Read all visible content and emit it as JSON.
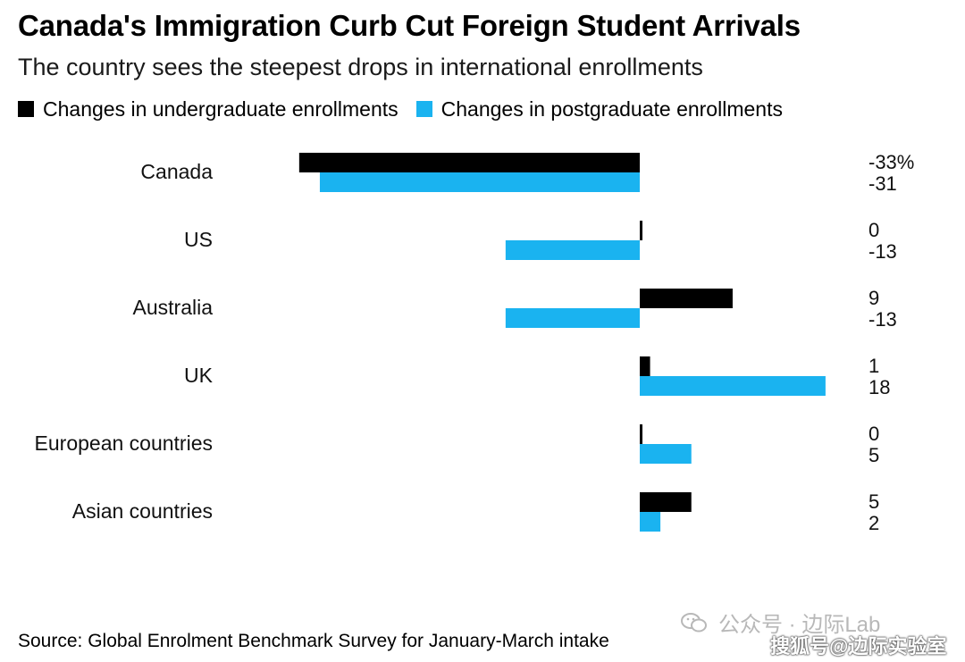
{
  "header": {
    "title": "Canada's Immigration Curb Cut Foreign Student Arrivals",
    "subtitle": "The country sees the steepest drops in international enrollments"
  },
  "legend": {
    "items": [
      {
        "label": "Changes in undergraduate enrollments",
        "color": "#000000"
      },
      {
        "label": "Changes in postgraduate enrollments",
        "color": "#1ab3f0"
      }
    ]
  },
  "chart_data": {
    "type": "bar",
    "orientation": "horizontal",
    "categories": [
      "Canada",
      "US",
      "Australia",
      "UK",
      "European countries",
      "Asian countries"
    ],
    "series": [
      {
        "name": "Changes in undergraduate enrollments",
        "color": "#000000",
        "values": [
          -33,
          0,
          9,
          1,
          0,
          5
        ],
        "value_labels": [
          "-33%",
          "0",
          "9",
          "1",
          "0",
          "5"
        ]
      },
      {
        "name": "Changes in postgraduate enrollments",
        "color": "#1ab3f0",
        "values": [
          -31,
          -13,
          -13,
          18,
          5,
          2
        ],
        "value_labels": [
          "-31",
          "-13",
          "-13",
          "18",
          "5",
          "2"
        ]
      }
    ],
    "xlim": [
      -33,
      18
    ],
    "grid": false,
    "legend_position": "top-left",
    "axis_labels_shown": false
  },
  "footer": {
    "source": "Source: Global Enrolment Benchmark Survey for January-March intake"
  },
  "watermarks": {
    "primary": "公众号 · 边际Lab",
    "secondary": "搜狐号@边际实验室",
    "primary_icon": "wechat-icon"
  }
}
